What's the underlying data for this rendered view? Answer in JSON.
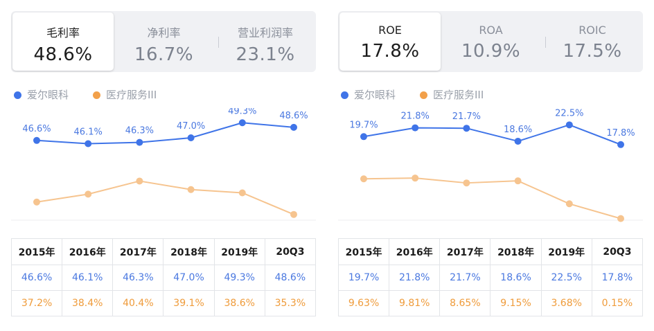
{
  "colors": {
    "primary": "#3f74e8",
    "secondary": "#f6c48f",
    "secondary_text": "#ef9b3a"
  },
  "left": {
    "metrics": [
      {
        "label": "毛利率",
        "value": "48.6%"
      },
      {
        "label": "净利率",
        "value": "16.7%"
      },
      {
        "label": "营业利润率",
        "value": "23.1%"
      }
    ],
    "legend": [
      "爱尔眼科",
      "医疗服务III"
    ],
    "table": {
      "headers": [
        "2015年",
        "2016年",
        "2017年",
        "2018年",
        "2019年",
        "20Q3"
      ],
      "row1": [
        "46.6%",
        "46.1%",
        "46.3%",
        "47.0%",
        "49.3%",
        "48.6%"
      ],
      "row2": [
        "37.2%",
        "38.4%",
        "40.4%",
        "39.1%",
        "38.6%",
        "35.3%"
      ]
    }
  },
  "right": {
    "metrics": [
      {
        "label": "ROE",
        "value": "17.8%"
      },
      {
        "label": "ROA",
        "value": "10.9%"
      },
      {
        "label": "ROIC",
        "value": "17.5%"
      }
    ],
    "legend": [
      "爱尔眼科",
      "医疗服务III"
    ],
    "table": {
      "headers": [
        "2015年",
        "2016年",
        "2017年",
        "2018年",
        "2019年",
        "20Q3"
      ],
      "row1": [
        "19.7%",
        "21.8%",
        "21.7%",
        "18.6%",
        "22.5%",
        "17.8%"
      ],
      "row2": [
        "9.63%",
        "9.81%",
        "8.65%",
        "9.15%",
        "3.68%",
        "0.15%"
      ]
    }
  },
  "chart_data": [
    {
      "type": "line",
      "categories": [
        "2015年",
        "2016年",
        "2017年",
        "2018年",
        "2019年",
        "20Q3"
      ],
      "series": [
        {
          "name": "爱尔眼科",
          "values": [
            46.6,
            46.1,
            46.3,
            47.0,
            49.3,
            48.6
          ],
          "labels": [
            "46.6%",
            "46.1%",
            "46.3%",
            "47.0%",
            "49.3%",
            "48.6%"
          ],
          "color": "#3f74e8"
        },
        {
          "name": "医疗服务III",
          "values": [
            37.2,
            38.4,
            40.4,
            39.1,
            38.6,
            35.3
          ],
          "color": "#f6c48f"
        }
      ],
      "ylim": [
        34.0,
        50.7
      ],
      "legend": "top-left",
      "grid": false
    },
    {
      "type": "line",
      "categories": [
        "2015年",
        "2016年",
        "2017年",
        "2018年",
        "2019年",
        "20Q3"
      ],
      "series": [
        {
          "name": "爱尔眼科",
          "values": [
            19.7,
            21.8,
            21.7,
            18.6,
            22.5,
            17.8
          ],
          "labels": [
            "19.7%",
            "21.8%",
            "21.7%",
            "18.6%",
            "22.5%",
            "17.8%"
          ],
          "color": "#3f74e8"
        },
        {
          "name": "医疗服务III",
          "values": [
            9.63,
            9.81,
            8.65,
            9.15,
            3.68,
            0.15
          ],
          "color": "#f6c48f"
        }
      ],
      "ylim": [
        -0.9,
        25.2
      ],
      "legend": "top-left",
      "grid": false
    }
  ]
}
